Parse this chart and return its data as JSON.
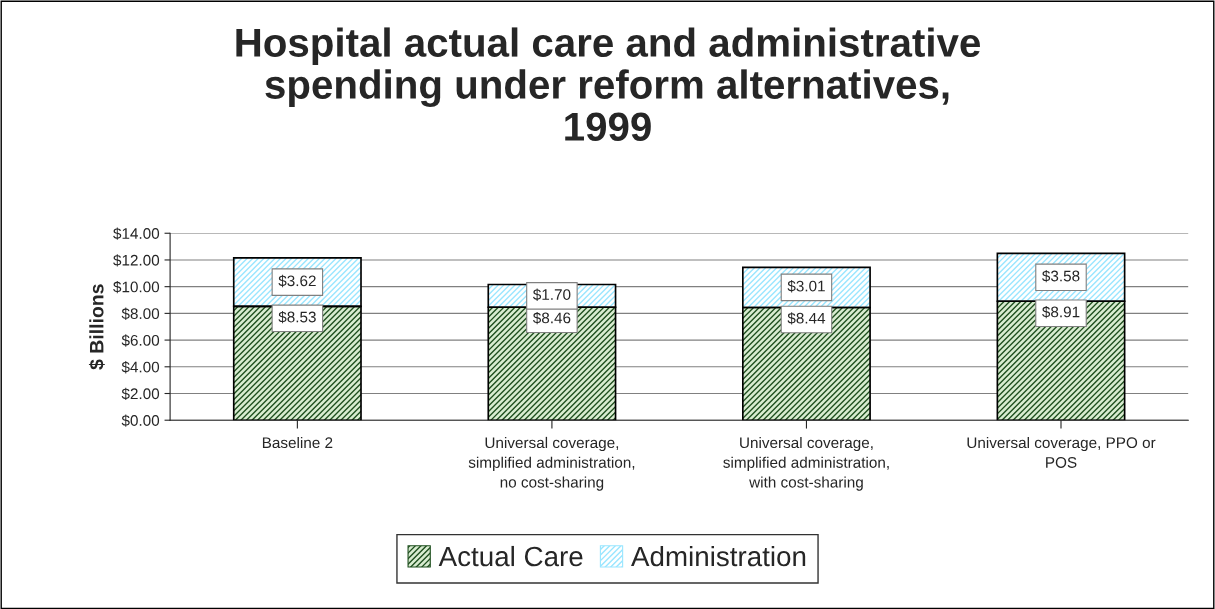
{
  "chart_data": {
    "type": "bar",
    "stacked": true,
    "title": "Hospital actual care and administrative\nspending under reform alternatives,\n1999",
    "ylabel": "$ Billions",
    "categories": [
      "Baseline 2",
      "Universal coverage,\nsimplified administration,\nno cost-sharing",
      "Universal coverage,\nsimplified administration,\nwith cost-sharing",
      "Universal coverage, PPO or\nPOS"
    ],
    "series": [
      {
        "name": "Actual Care",
        "color": "#1f4f1f",
        "values": [
          8.53,
          8.46,
          8.44,
          8.91
        ],
        "value_labels": [
          "$8.53",
          "$8.46",
          "$8.44",
          "$8.91"
        ]
      },
      {
        "name": "Administration",
        "color": "#99e6ff",
        "values": [
          3.62,
          1.7,
          3.01,
          3.58
        ],
        "value_labels": [
          "$3.62",
          "$1.70",
          "$3.01",
          "$3.58"
        ]
      }
    ],
    "ylim": [
      0,
      14
    ],
    "yticks": [
      {
        "value": 0,
        "label": "$0.00"
      },
      {
        "value": 2,
        "label": "$2.00"
      },
      {
        "value": 4,
        "label": "$4.00"
      },
      {
        "value": 6,
        "label": "$6.00"
      },
      {
        "value": 8,
        "label": "$8.00"
      },
      {
        "value": 10,
        "label": "$10.00"
      },
      {
        "value": 12,
        "label": "$12.00"
      },
      {
        "value": 14,
        "label": "$14.00"
      }
    ],
    "grid": "y",
    "legend": "bottom"
  }
}
